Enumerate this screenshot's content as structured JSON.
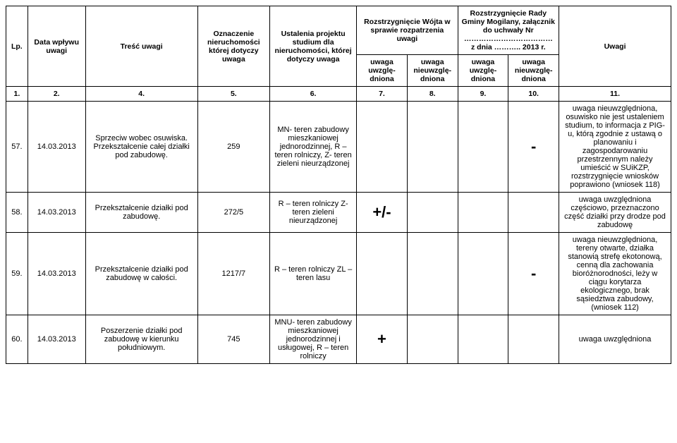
{
  "header": {
    "lp": "Lp.",
    "data": "Data wpływu uwagi",
    "tresc": "Treść uwagi",
    "oznaczenie": "Oznaczenie nieruchomości której dotyczy uwaga",
    "ustalenia": "Ustalenia projektu studium dla nieruchomości, której dotyczy uwaga",
    "rozstrzygWojt": "Rozstrzygnięcie Wójta w sprawie rozpatrzenia uwagi",
    "rozstrzygRadaTop": "Rozstrzygnięcie Rady Gminy Mogilany, załącznik do uchwały Nr",
    "rozstrzygRadaDots": "………………………………",
    "rozstrzygRadaDate": "z dnia ……….. 2013 r.",
    "uwagi": "Uwagi",
    "uwzgl": "uwaga uwzglę-dniona",
    "nieuwzgl": "uwaga nieuwzglę-dniona"
  },
  "numRow": {
    "c1": "1.",
    "c2": "2.",
    "c4": "4.",
    "c5": "5.",
    "c6": "6.",
    "c7": "7.",
    "c8": "8.",
    "c9": "9.",
    "c10": "10.",
    "c11": "11."
  },
  "rows": [
    {
      "lp": "57.",
      "date": "14.03.2013",
      "tresc": "Sprzeciw wobec osuwiska. Przekształcenie całej działki pod zabudowę.",
      "ozn": "259",
      "ust": "MN- teren zabudowy mieszkaniowej jednorodzinnej, R – teren rolniczy, Z- teren zieleni nieurządzonej",
      "m1": "",
      "m2": "",
      "m3": "",
      "m4": "-",
      "uwagi": "uwaga nieuwzględniona, osuwisko nie jest ustaleniem studium, to informacja z PIG-u, którą zgodnie z ustawą o planowaniu i zagospodarowaniu przestrzennym należy umieścić w  SUiKZP, rozstrzygnięcie wniosków poprawiono (wniosek 118)"
    },
    {
      "lp": "58.",
      "date": "14.03.2013",
      "tresc": "Przekształcenie działki pod zabudowę.",
      "ozn": "272/5",
      "ust": "R – teren rolniczy Z- teren zieleni nieurządzonej",
      "m1": "+/-",
      "m2": "",
      "m3": "",
      "m4": "",
      "uwagi": "uwaga uwzględniona częściowo, przeznaczono część działki przy drodze pod zabudowę"
    },
    {
      "lp": "59.",
      "date": "14.03.2013",
      "tresc": "Przekształcenie działki pod zabudowę w całości.",
      "ozn": "1217/7",
      "ust": "R – teren rolniczy ZL – teren lasu",
      "m1": "",
      "m2": "",
      "m3": "",
      "m4": "-",
      "uwagi": "uwaga nieuwzględniona, tereny otwarte, działka stanowią strefę ekotonową, cenną dla zachowania bioróżnorodności, leży w ciągu korytarza ekologicznego, brak sąsiedztwa zabudowy, (wniosek 112)"
    },
    {
      "lp": "60.",
      "date": "14.03.2013",
      "tresc": "Poszerzenie działki pod zabudowę w kierunku południowym.",
      "ozn": "745",
      "ust": "MNU- teren zabudowy mieszkaniowej jednorodzinnej i usługowej, R – teren rolniczy",
      "m1": "+",
      "m2": "",
      "m3": "",
      "m4": "",
      "uwagi": "uwaga uwzględniona"
    }
  ]
}
